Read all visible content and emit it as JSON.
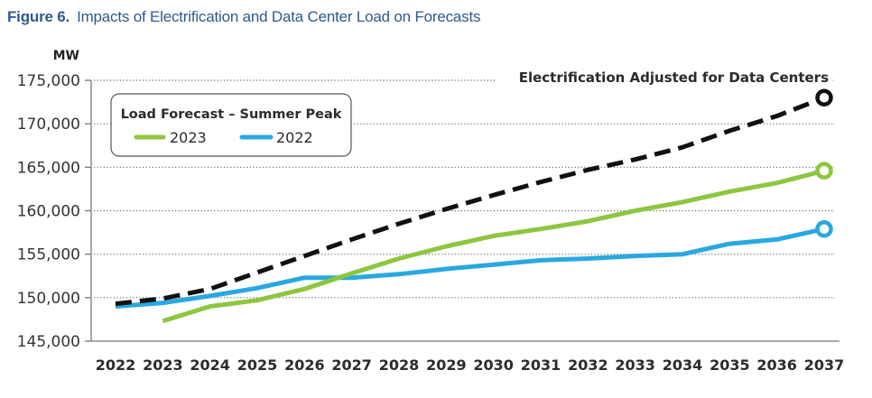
{
  "figure": {
    "number": "Figure 6.",
    "title": "Impacts of Electrification and Data Center Load on Forecasts",
    "title_color": "#2e5a8c"
  },
  "chart_data": {
    "type": "line",
    "title": "Impacts of Electrification and Data Center Load on Forecasts",
    "xlabel": "",
    "ylabel": "MW",
    "ylim": [
      145000,
      175000
    ],
    "yticks": [
      145000,
      150000,
      155000,
      160000,
      165000,
      170000,
      175000
    ],
    "ytick_labels": [
      "145,000",
      "150,000",
      "155,000",
      "160,000",
      "165,000",
      "170,000",
      "175,000"
    ],
    "grid": "horizontal dotted",
    "x": [
      2022,
      2023,
      2024,
      2025,
      2026,
      2027,
      2028,
      2029,
      2030,
      2031,
      2032,
      2033,
      2034,
      2035,
      2036,
      2037
    ],
    "x_labels": [
      "2022",
      "2023",
      "2024",
      "2025",
      "2026",
      "2027",
      "2028",
      "2029",
      "2030",
      "2031",
      "2032",
      "2033",
      "2034",
      "2035",
      "2036",
      "2037"
    ],
    "legend": {
      "title": "Load Forecast – Summer Peak",
      "placement": "top-left",
      "entries": [
        "2023",
        "2022"
      ]
    },
    "annotation": "Electrification Adjusted for Data Centers",
    "series": [
      {
        "name": "Electrification Adjusted for Data Centers",
        "color": "#111111",
        "style": "dashed",
        "end_marker": "open-circle",
        "values": [
          149300,
          149900,
          151000,
          152900,
          154800,
          156700,
          158500,
          160200,
          161800,
          163300,
          164700,
          165900,
          167300,
          169200,
          170900,
          173000
        ]
      },
      {
        "name": "2023",
        "color": "#8dc63f",
        "style": "solid",
        "end_marker": "open-circle",
        "values": [
          null,
          147300,
          149000,
          149700,
          151000,
          152800,
          154500,
          155900,
          157100,
          157900,
          158800,
          160000,
          161000,
          162200,
          163200,
          164600
        ]
      },
      {
        "name": "2022",
        "color": "#29a8e0",
        "style": "solid",
        "end_marker": "open-circle",
        "values": [
          149000,
          149400,
          150200,
          151100,
          152300,
          152300,
          152700,
          153300,
          153800,
          154300,
          154500,
          154800,
          155000,
          156200,
          156700,
          157900
        ]
      }
    ]
  }
}
